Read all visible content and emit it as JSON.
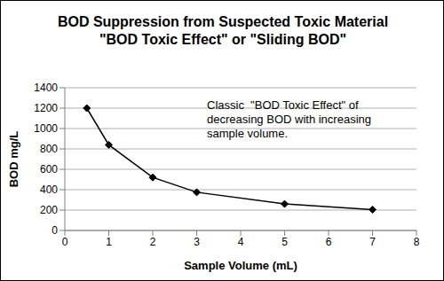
{
  "chart_data": {
    "type": "line",
    "title": "BOD Suppression from Suspected Toxic Material",
    "subtitle": "\"BOD Toxic Effect\" or \"Sliding BOD\"",
    "x_label": "Sample Volume (mL)",
    "y_label": "BOD mg/L",
    "annotation": [
      "Classic  \"BOD Toxic Effect\" of",
      "decreasing BOD with increasing",
      "sample volume."
    ],
    "x": [
      0.5,
      1,
      2,
      3,
      5,
      7
    ],
    "values": [
      1200,
      840,
      520,
      375,
      260,
      205
    ],
    "color": "#000000",
    "marker": "diamond",
    "line_style": "solid",
    "xlim": [
      0,
      8
    ],
    "xticks": [
      0,
      1,
      2,
      3,
      4,
      5,
      6,
      7,
      8
    ],
    "ylim": [
      0,
      1400
    ],
    "yticks": [
      0,
      200,
      400,
      600,
      800,
      1000,
      1200,
      1400
    ],
    "grid": true
  }
}
